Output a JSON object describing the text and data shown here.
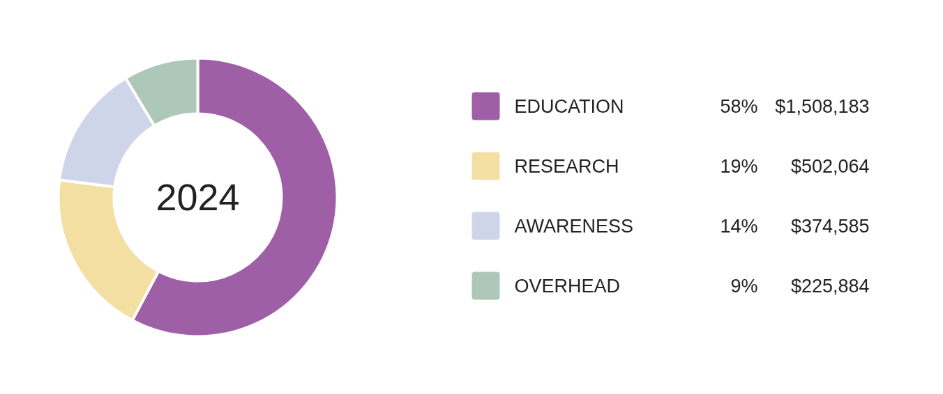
{
  "chart_data": {
    "type": "donut",
    "title": "2024",
    "categories": [
      "EDUCATION",
      "RESEARCH",
      "AWARENESS",
      "OVERHEAD"
    ],
    "values": [
      1508183,
      502064,
      374585,
      225884
    ],
    "value_labels": [
      "$1,508,183",
      "$502,064",
      "$374,585",
      "$225,884"
    ],
    "annotations": [
      "58%",
      "19%",
      "14%",
      "9%"
    ],
    "colors": [
      "#9e5fa6",
      "#f4dfa3",
      "#cfd5e8",
      "#adc8b9"
    ],
    "legend": "right"
  }
}
